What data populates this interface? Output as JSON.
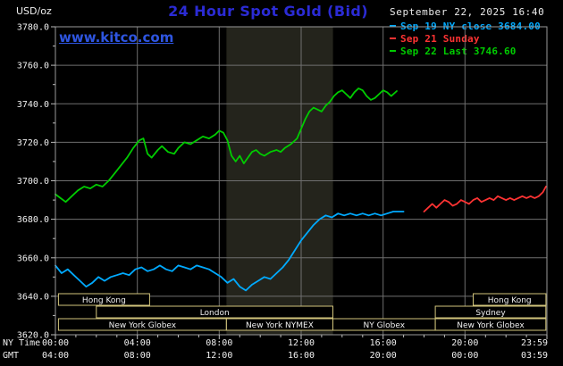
{
  "header": {
    "unit_label": "USD/oz",
    "title": "24 Hour Spot Gold (Bid)",
    "datetime": "September 22, 2025 16:40",
    "watermark": "www.kitco.com"
  },
  "legend": {
    "position": "top-right",
    "items": [
      {
        "label": "Sep 19 NY close 3684.00",
        "color": "#00aaff"
      },
      {
        "label": "Sep 21 Sunday",
        "color": "#ff3333"
      },
      {
        "label": "Sep 22 Last 3746.60",
        "color": "#00cc00"
      }
    ]
  },
  "colors": {
    "background": "#000000",
    "title": "#2b2bd4",
    "watermark": "#2e55e0",
    "grid": "#6f6f6f",
    "border": "#9a9a9a",
    "tick": "#bbbbbb",
    "axis_text": "#f0f0f0",
    "session": "#d2c57c",
    "band": "#24241c"
  },
  "axes": {
    "y_ticks": [
      "3780.0",
      "3760.0",
      "3740.0",
      "3720.0",
      "3700.0",
      "3680.0",
      "3660.0",
      "3640.0",
      "3620.0"
    ],
    "x_tick_hours": [
      0,
      4,
      8,
      12,
      16,
      20,
      24
    ],
    "x_ny": {
      "label": "NY Time",
      "ticks": [
        "00:00",
        "04:00",
        "08:00",
        "12:00",
        "16:00",
        "20:00",
        "23:59"
      ]
    },
    "x_gmt": {
      "label": "GMT",
      "ticks": [
        "04:00",
        "08:00",
        "12:00",
        "16:00",
        "20:00",
        "00:00",
        "03:59"
      ]
    }
  },
  "sessions": {
    "rows": [
      [
        {
          "label": "Hong Kong",
          "start": 0.15,
          "end": 4.6
        },
        {
          "label": "Hong Kong",
          "start": 20.4,
          "end": 23.95
        }
      ],
      [
        {
          "label": "London",
          "start": 2.0,
          "end": 13.55
        },
        {
          "label": "Sydney",
          "start": 18.55,
          "end": 23.95
        }
      ],
      [
        {
          "label": "New York Globex",
          "start": 0.15,
          "end": 8.35
        },
        {
          "label": "New York NYMEX",
          "start": 8.35,
          "end": 13.55
        },
        {
          "label": "NY Globex",
          "start": 13.55,
          "end": 18.55
        },
        {
          "label": "New York Globex",
          "start": 18.55,
          "end": 23.95
        }
      ]
    ]
  },
  "chart_data": {
    "type": "line",
    "title": "24 Hour Spot Gold (Bid)",
    "xlabel": "NY Time (hours)",
    "ylabel": "USD/oz",
    "xlim": [
      0,
      24
    ],
    "ylim": [
      3620,
      3780
    ],
    "y_gridline_step": 20,
    "x_gridline_step_hours": 4,
    "grid": true,
    "legend_position": "top-right",
    "highlight_band": {
      "start": 8.35,
      "end": 13.55
    },
    "series": [
      {
        "name": "Sep 19 NY close",
        "color": "#00aaff",
        "close_value": 3684.0,
        "x": [
          0,
          0.3,
          0.6,
          0.9,
          1.2,
          1.5,
          1.8,
          2.1,
          2.4,
          2.7,
          3,
          3.3,
          3.6,
          3.9,
          4.2,
          4.5,
          4.8,
          5.1,
          5.4,
          5.7,
          6,
          6.3,
          6.6,
          6.9,
          7.2,
          7.5,
          7.8,
          8.1,
          8.4,
          8.7,
          9,
          9.3,
          9.6,
          9.9,
          10.2,
          10.5,
          10.8,
          11.1,
          11.4,
          11.7,
          12,
          12.3,
          12.6,
          12.9,
          13.2,
          13.5,
          13.8,
          14.1,
          14.4,
          14.7,
          15,
          15.3,
          15.6,
          15.9,
          16.2,
          16.5,
          17
        ],
        "y": [
          3656,
          3652,
          3654,
          3651,
          3648,
          3645,
          3647,
          3650,
          3648,
          3650,
          3651,
          3652,
          3651,
          3654,
          3655,
          3653,
          3654,
          3656,
          3654,
          3653,
          3656,
          3655,
          3654,
          3656,
          3655,
          3654,
          3652,
          3650,
          3647,
          3649,
          3645,
          3643,
          3646,
          3648,
          3650,
          3649,
          3652,
          3655,
          3659,
          3664,
          3669,
          3673,
          3677,
          3680,
          3682,
          3681,
          3683,
          3682,
          3683,
          3682,
          3683,
          3682,
          3683,
          3682,
          3683,
          3684,
          3684
        ]
      },
      {
        "name": "Sep 21 Sunday",
        "color": "#ff3333",
        "x": [
          18,
          18.2,
          18.4,
          18.6,
          18.8,
          19,
          19.2,
          19.4,
          19.6,
          19.8,
          20,
          20.2,
          20.4,
          20.6,
          20.8,
          21,
          21.2,
          21.4,
          21.6,
          21.8,
          22,
          22.2,
          22.4,
          22.6,
          22.8,
          23,
          23.2,
          23.4,
          23.6,
          23.8,
          23.95
        ],
        "y": [
          3684,
          3686,
          3688,
          3686,
          3688,
          3690,
          3689,
          3687,
          3688,
          3690,
          3689,
          3688,
          3690,
          3691,
          3689,
          3690,
          3691,
          3690,
          3692,
          3691,
          3690,
          3691,
          3690,
          3691,
          3692,
          3691,
          3692,
          3691,
          3692,
          3694,
          3697
        ]
      },
      {
        "name": "Sep 22",
        "color": "#00cc00",
        "last_value": 3746.6,
        "x": [
          0,
          0.25,
          0.5,
          0.8,
          1.1,
          1.4,
          1.7,
          2,
          2.3,
          2.6,
          2.9,
          3.2,
          3.5,
          3.8,
          4.1,
          4.3,
          4.5,
          4.7,
          5,
          5.2,
          5.5,
          5.8,
          6,
          6.3,
          6.6,
          6.9,
          7.2,
          7.5,
          7.8,
          8,
          8.2,
          8.4,
          8.6,
          8.8,
          9,
          9.2,
          9.4,
          9.6,
          9.8,
          10,
          10.2,
          10.5,
          10.8,
          11,
          11.2,
          11.5,
          11.8,
          12,
          12.2,
          12.4,
          12.6,
          12.8,
          13,
          13.2,
          13.4,
          13.6,
          13.8,
          14,
          14.2,
          14.4,
          14.6,
          14.8,
          15,
          15.2,
          15.4,
          15.6,
          15.8,
          16,
          16.2,
          16.4,
          16.67
        ],
        "y": [
          3693,
          3691,
          3689,
          3692,
          3695,
          3697,
          3696,
          3698,
          3697,
          3700,
          3704,
          3708,
          3712,
          3717,
          3721,
          3722,
          3714,
          3712,
          3716,
          3718,
          3715,
          3714,
          3717,
          3720,
          3719,
          3721,
          3723,
          3722,
          3724,
          3726,
          3725,
          3721,
          3713,
          3710,
          3713,
          3709,
          3712,
          3715,
          3716,
          3714,
          3713,
          3715,
          3716,
          3715,
          3717,
          3719,
          3722,
          3727,
          3732,
          3736,
          3738,
          3737,
          3736,
          3739,
          3741,
          3744,
          3746,
          3747,
          3745,
          3743,
          3746,
          3748,
          3747,
          3744,
          3742,
          3743,
          3745,
          3747,
          3746,
          3744,
          3746.6
        ]
      }
    ]
  }
}
